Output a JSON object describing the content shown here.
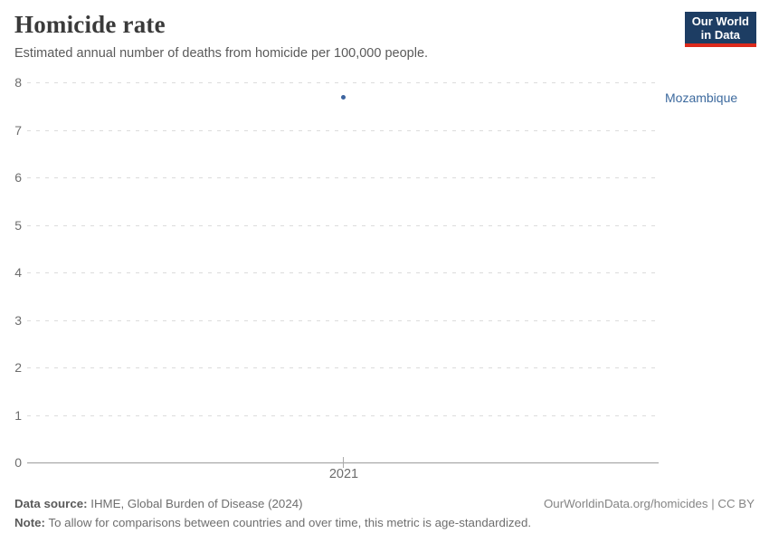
{
  "header": {
    "title": "Homicide rate",
    "subtitle": "Estimated annual number of deaths from homicide per 100,000 people.",
    "logo": {
      "line1": "Our World",
      "line2": "in Data"
    }
  },
  "chart_data": {
    "type": "scatter",
    "title": "Homicide rate",
    "subtitle": "Estimated annual number of deaths from homicide per 100,000 people.",
    "x": [
      2021
    ],
    "series": [
      {
        "name": "Mozambique",
        "values": [
          7.68
        ],
        "color": "#3d649f",
        "label_color": "#3d6a9e"
      }
    ],
    "xticks": [
      "2021"
    ],
    "yticks": [
      0,
      1,
      2,
      3,
      4,
      5,
      6,
      7,
      8
    ],
    "ylim": [
      0,
      8
    ],
    "xlabel": "",
    "ylabel": "",
    "grid": "horizontal-dashed",
    "legend_position": "entity-label-right"
  },
  "colors": {
    "grid": "#dcdcdc",
    "axis": "#9c9c9c",
    "tick_label": "#6d6d6d",
    "title": "#3a3a3a",
    "subtitle": "#5a5a5a",
    "logo_bg": "#1d3d63",
    "logo_accent": "#dc2a1c"
  },
  "footer": {
    "source_label": "Data source:",
    "source_text": " IHME, Global Burden of Disease (2024)",
    "note_label": "Note:",
    "note_text": " To allow for comparisons between countries and over time, this metric is age-standardized.",
    "rights": "OurWorldinData.org/homicides | CC BY"
  }
}
